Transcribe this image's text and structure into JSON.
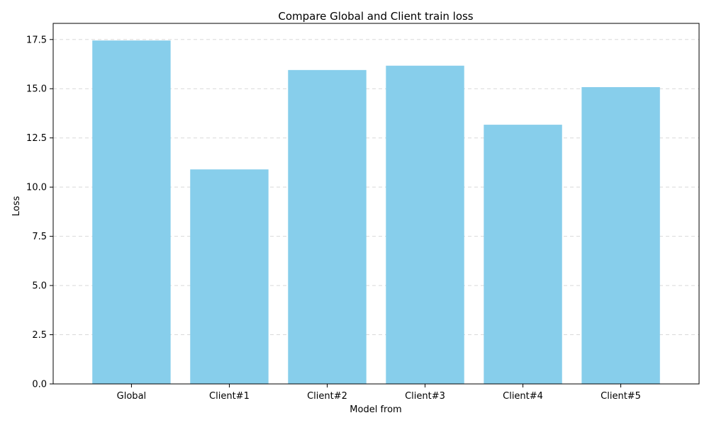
{
  "chart_data": {
    "type": "bar",
    "title": "Compare Global and Client train loss",
    "xlabel": "Model from",
    "ylabel": "Loss",
    "categories": [
      "Global",
      "Client#1",
      "Client#2",
      "Client#3",
      "Client#4",
      "Client#5"
    ],
    "values": [
      17.45,
      10.9,
      15.95,
      16.17,
      13.17,
      15.08
    ],
    "ylim": [
      0,
      18.32
    ],
    "yticks": [
      0.0,
      2.5,
      5.0,
      7.5,
      10.0,
      12.5,
      15.0,
      17.5
    ],
    "ytick_labels": [
      "0.0",
      "2.5",
      "5.0",
      "7.5",
      "10.0",
      "12.5",
      "15.0",
      "17.5"
    ],
    "bar_color": "#87ceeb",
    "grid": "y, dashed"
  }
}
